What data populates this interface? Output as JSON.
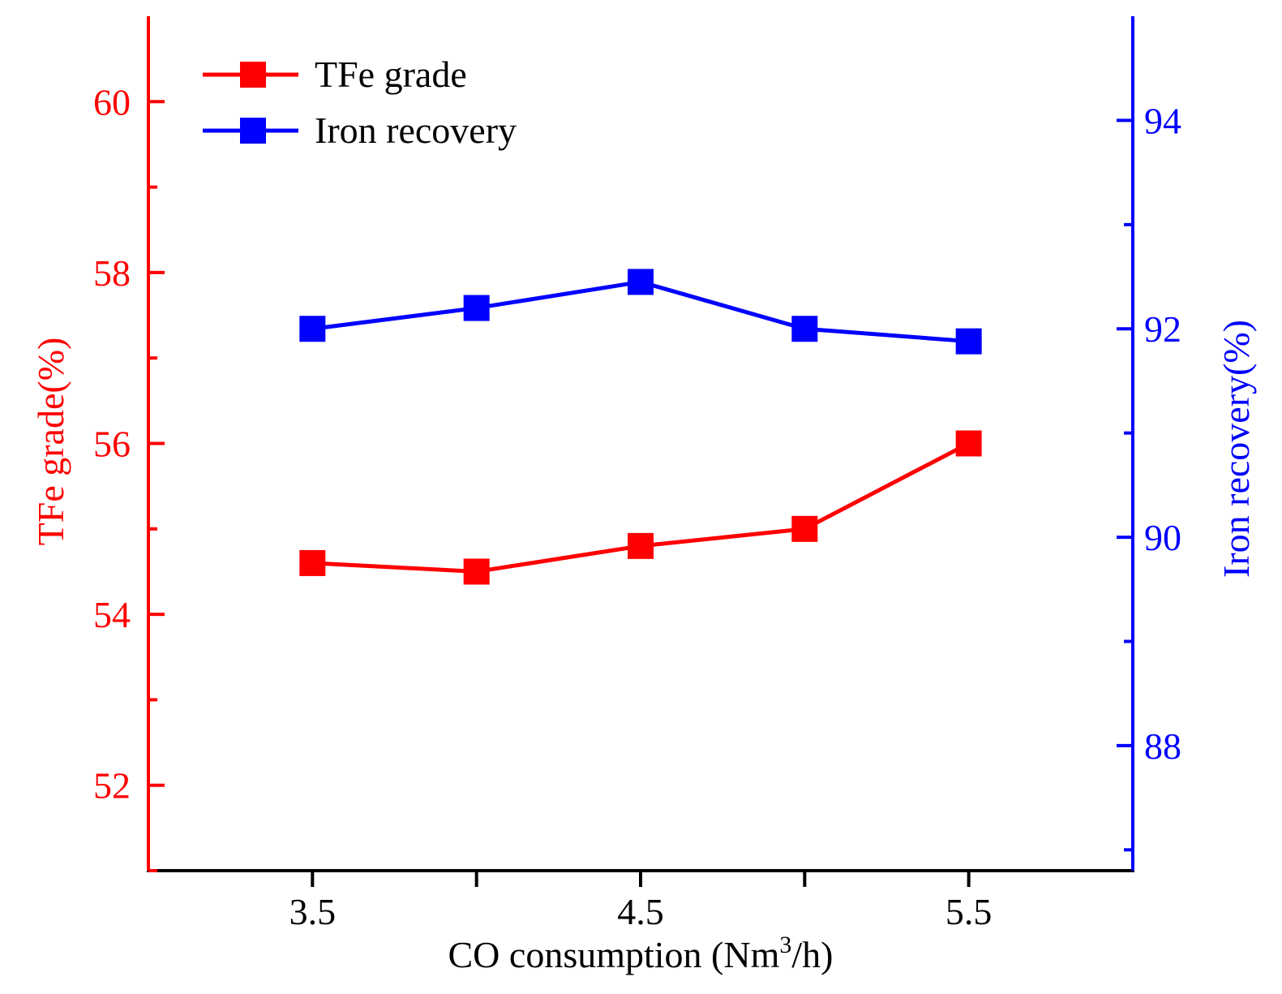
{
  "colors": {
    "left": "#ff0000",
    "right": "#0000ff",
    "axis": "#000000"
  },
  "chart_data": {
    "type": "line",
    "xlabel_main": "CO consumption (Nm",
    "xlabel_sup": "3",
    "xlabel_end": "/h)",
    "ylabel_left": "TFe grade(%)",
    "ylabel_right": "Iron recovery(%)",
    "xlim": [
      3.0,
      6.0
    ],
    "ylim_left": [
      51.0,
      61.0
    ],
    "ylim_right": [
      86.8,
      95.0
    ],
    "x_major_ticks": [
      3.5,
      4.5,
      5.5
    ],
    "x_major_labels": [
      "3.5",
      "4.5",
      "5.5"
    ],
    "x_minor_ticks": [
      4.0,
      5.0
    ],
    "yleft_major_ticks": [
      52,
      54,
      56,
      58,
      60
    ],
    "yleft_major_labels": [
      "52",
      "54",
      "56",
      "58",
      "60"
    ],
    "yleft_minor_ticks": [
      51,
      53,
      55,
      57,
      59
    ],
    "yright_major_ticks": [
      88,
      90,
      92,
      94
    ],
    "yright_major_labels": [
      "88",
      "90",
      "92",
      "94"
    ],
    "yright_minor_ticks": [
      87,
      89,
      91,
      93
    ],
    "x": [
      3.5,
      4.0,
      4.5,
      5.0,
      5.5
    ],
    "series": [
      {
        "name": "TFe grade",
        "axis": "left",
        "color": "#ff0000",
        "marker": "square",
        "values": [
          54.6,
          54.5,
          54.8,
          55.0,
          56.0
        ]
      },
      {
        "name": "Iron recovery",
        "axis": "right",
        "color": "#0000ff",
        "marker": "square",
        "values": [
          92.0,
          92.2,
          92.45,
          92.0,
          91.88
        ]
      }
    ],
    "legend_position": "top-left",
    "grid": false
  }
}
